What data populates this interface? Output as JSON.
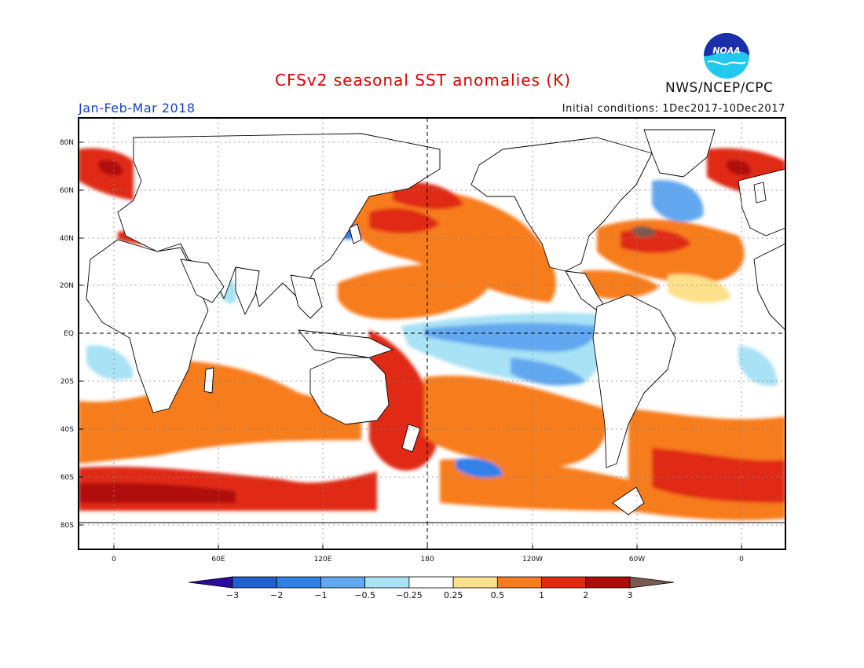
{
  "title": "CFSv2 seasonal SST anomalies (K)",
  "agency": "NWS/NCEP/CPC",
  "logo_text": "NOAA",
  "season_label": "Jan-Feb-Mar 2018",
  "initial_conditions": "Initial conditions: 1Dec2017-10Dec2017",
  "lat_labels": [
    "80N",
    "60N",
    "40N",
    "20N",
    "EQ",
    "20S",
    "40S",
    "60S",
    "80S"
  ],
  "lon_labels": [
    "0",
    "60E",
    "120E",
    "180",
    "120W",
    "60W",
    "0"
  ],
  "colorbar": {
    "labels": [
      "-3",
      "-2",
      "-1",
      "-0.5",
      "-0.25",
      "0.25",
      "0.5",
      "1",
      "2",
      "3"
    ],
    "colors": [
      "#2a0aa0",
      "#1f5fd0",
      "#3080e8",
      "#62a8f0",
      "#a8e2f4",
      "#ffffff",
      "#fde08a",
      "#f77c1e",
      "#e02a12",
      "#b00c0c",
      "#7a5a4e"
    ]
  },
  "colors": {
    "title": "#dd0000",
    "season": "#1a3fcc",
    "coast": "#000000"
  }
}
